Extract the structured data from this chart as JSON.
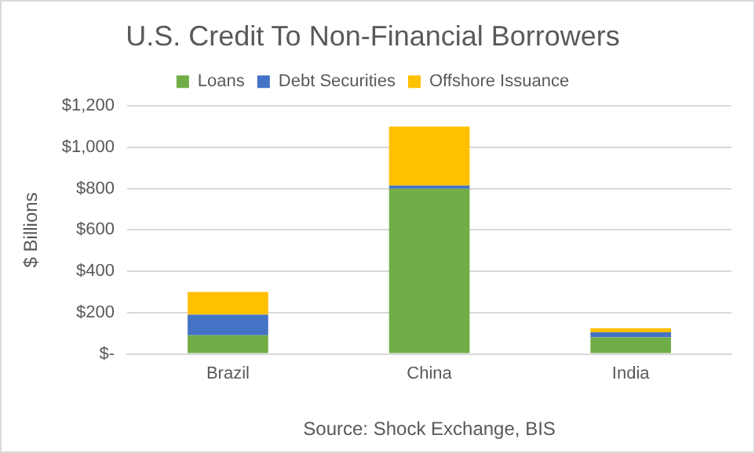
{
  "chart_data": {
    "type": "bar",
    "title": "U.S. Credit To Non-Financial Borrowers",
    "ylabel": "$ Billions",
    "categories": [
      "Brazil",
      "China",
      "India"
    ],
    "stacked": true,
    "series": [
      {
        "name": "Loans",
        "color": "#70ad47",
        "values": [
          90,
          800,
          80
        ]
      },
      {
        "name": "Debt Securities",
        "color": "#4472c4",
        "values": [
          100,
          15,
          25
        ]
      },
      {
        "name": "Offshore Issuance",
        "color": "#ffc000",
        "values": [
          110,
          285,
          20
        ]
      }
    ],
    "ylim": [
      0,
      1200
    ],
    "yticks": [
      {
        "value": 0,
        "label": "$-"
      },
      {
        "value": 200,
        "label": "$200"
      },
      {
        "value": 400,
        "label": "$400"
      },
      {
        "value": 600,
        "label": "$600"
      },
      {
        "value": 800,
        "label": "$800"
      },
      {
        "value": 1000,
        "label": "$1,000"
      },
      {
        "value": 1200,
        "label": "$1,200"
      }
    ],
    "grid": "y",
    "legend": "top",
    "annotations": [
      "Source: Shock Exchange, BIS"
    ]
  }
}
